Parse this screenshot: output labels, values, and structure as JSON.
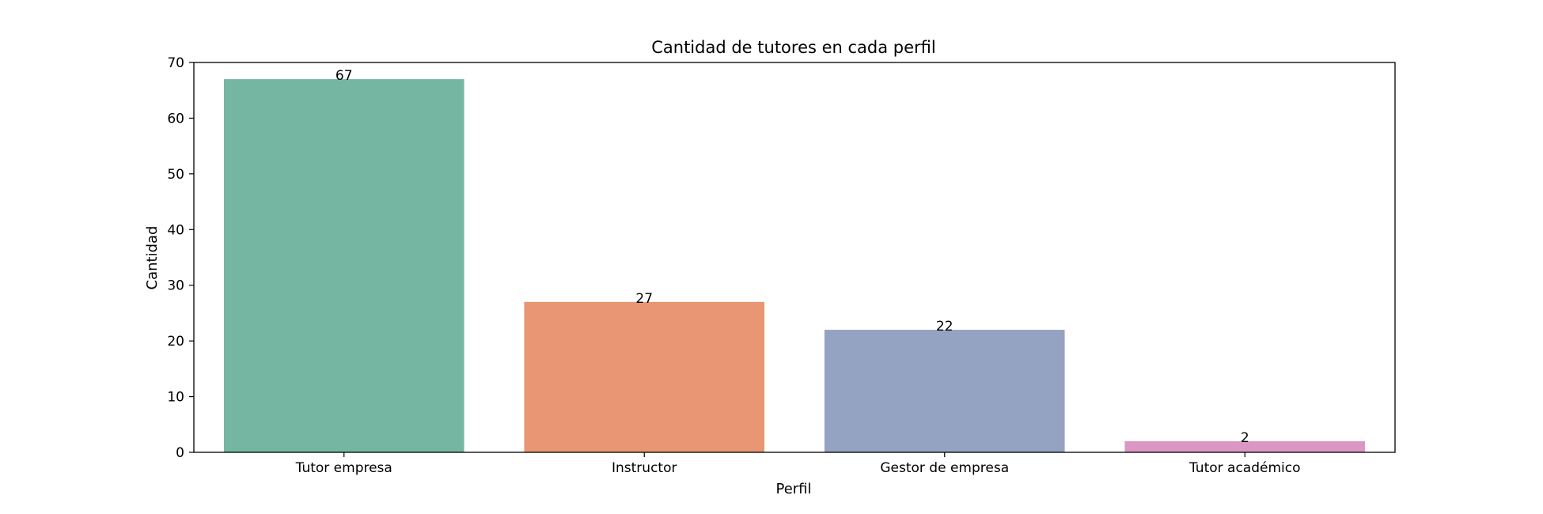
{
  "chart_data": {
    "type": "bar",
    "title": "Cantidad de tutores en cada perfil",
    "xlabel": "Perfil",
    "ylabel": "Cantidad",
    "categories": [
      "Tutor empresa",
      "Instructor",
      "Gestor de empresa",
      "Tutor académico"
    ],
    "values": [
      67,
      27,
      22,
      2
    ],
    "data_labels": [
      "67",
      "27",
      "22",
      "2"
    ],
    "colors": [
      "#74b6a1",
      "#e89673",
      "#94a3c2",
      "#dc96c3"
    ],
    "ylim": [
      0,
      70
    ],
    "yticks": [
      0,
      10,
      20,
      30,
      40,
      50,
      60,
      70
    ],
    "grid": false,
    "legend": "none"
  }
}
